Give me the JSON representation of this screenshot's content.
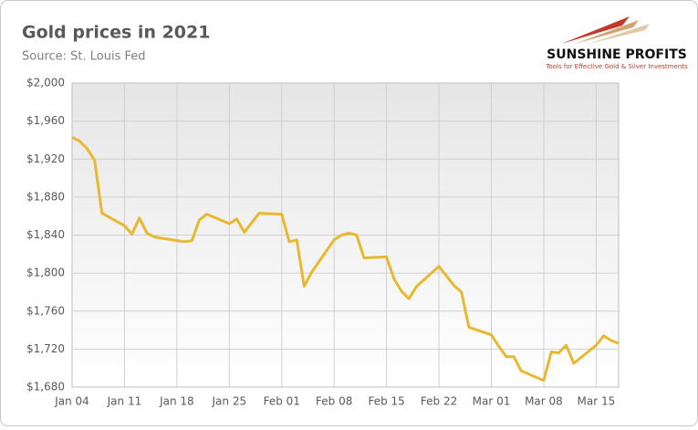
{
  "chart_data": {
    "type": "line",
    "title": "Gold prices in 2021",
    "subtitle": "Source: St. Louis Fed",
    "logo": {
      "name": "SUNSHINE PROFITS",
      "tagline": "Tools for Effective Gold & Silver Investments"
    },
    "x": [
      "Jan 04",
      "Jan 05",
      "Jan 06",
      "Jan 07",
      "Jan 08",
      "Jan 11",
      "Jan 12",
      "Jan 13",
      "Jan 14",
      "Jan 15",
      "Jan 19",
      "Jan 20",
      "Jan 21",
      "Jan 22",
      "Jan 25",
      "Jan 26",
      "Jan 27",
      "Jan 29",
      "Feb 01",
      "Feb 02",
      "Feb 03",
      "Feb 04",
      "Feb 05",
      "Feb 08",
      "Feb 09",
      "Feb 10",
      "Feb 11",
      "Feb 12",
      "Feb 15",
      "Feb 16",
      "Feb 17",
      "Feb 18",
      "Feb 19",
      "Feb 22",
      "Feb 23",
      "Feb 24",
      "Feb 25",
      "Feb 26",
      "Mar 01",
      "Mar 02",
      "Mar 03",
      "Mar 04",
      "Mar 05",
      "Mar 08",
      "Mar 09",
      "Mar 10",
      "Mar 11",
      "Mar 12",
      "Mar 15",
      "Mar 16",
      "Mar 17",
      "Mar 18"
    ],
    "series": [
      {
        "name": "Gold price",
        "color": "#e8b830",
        "values": [
          1943,
          1939,
          1931,
          1919,
          1863,
          1850,
          1841,
          1858,
          1842,
          1838,
          1833,
          1834,
          1856,
          1862,
          1852,
          1857,
          1843,
          1863,
          1862,
          1833,
          1835,
          1786,
          1801,
          1835,
          1840,
          1842,
          1840,
          1816,
          1817,
          1794,
          1781,
          1773,
          1786,
          1807,
          1797,
          1787,
          1780,
          1743,
          1735,
          1723,
          1712,
          1712,
          1697,
          1687,
          1717,
          1716,
          1724,
          1705,
          1724,
          1734,
          1729,
          1726
        ]
      }
    ],
    "xlim": [
      "Jan 04",
      "Mar 18"
    ],
    "xticks": [
      "Jan 04",
      "Jan 11",
      "Jan 18",
      "Jan 25",
      "Feb 01",
      "Feb 08",
      "Feb 15",
      "Feb 22",
      "Mar 01",
      "Mar 08",
      "Mar 15"
    ],
    "ylim": [
      1680,
      2000
    ],
    "yticks": [
      {
        "value": 1680,
        "label": "$1,680"
      },
      {
        "value": 1720,
        "label": "$1,720"
      },
      {
        "value": 1760,
        "label": "$1,760"
      },
      {
        "value": 1800,
        "label": "$1,800"
      },
      {
        "value": 1840,
        "label": "$1,840"
      },
      {
        "value": 1880,
        "label": "$1,880"
      },
      {
        "value": 1920,
        "label": "$1,920"
      },
      {
        "value": 1960,
        "label": "$1,960"
      },
      {
        "value": 2000,
        "label": "$2,000"
      }
    ],
    "grid": true
  }
}
